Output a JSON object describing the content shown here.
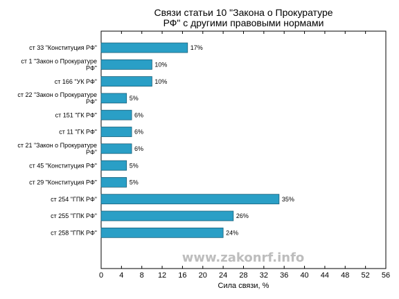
{
  "chart_data": {
    "type": "bar",
    "orientation": "horizontal",
    "title_lines": [
      "Связи статьи 10 \"Закона о Прокуратуре",
      "РФ\" с другими правовыми нормами"
    ],
    "xlabel": "Сила связи, %",
    "ylabel": "",
    "xlim": [
      0,
      56
    ],
    "xticks": [
      0,
      4,
      8,
      12,
      16,
      20,
      24,
      28,
      32,
      36,
      40,
      44,
      48,
      52,
      56
    ],
    "grid": false,
    "bar_color": "#2a9fc6",
    "bar_edge_color": "#1a5f78",
    "categories": [
      [
        "ст 33 \"Конституция РФ\""
      ],
      [
        "ст 1 \"Закон о Прокуратуре",
        "РФ\""
      ],
      [
        "ст 166 \"УК РФ\""
      ],
      [
        "ст 22 \"Закон о Прокуратуре",
        "РФ\""
      ],
      [
        "ст 151 \"ГК РФ\""
      ],
      [
        "ст 11 \"ГК РФ\""
      ],
      [
        "ст 21 \"Закон о Прокуратуре",
        "РФ\""
      ],
      [
        "ст 45 \"Конституция РФ\""
      ],
      [
        "ст 29 \"Конституция РФ\""
      ],
      [
        "ст 254 \"ГПК РФ\""
      ],
      [
        "ст 255 \"ГПК РФ\""
      ],
      [
        "ст 258 \"ГПК РФ\""
      ]
    ],
    "values": [
      17,
      10,
      10,
      5,
      6,
      6,
      6,
      5,
      5,
      35,
      26,
      24
    ],
    "value_labels": [
      "17%",
      "10%",
      "10%",
      "5%",
      "6%",
      "6%",
      "6%",
      "5%",
      "5%",
      "35%",
      "26%",
      "24%"
    ]
  },
  "watermark": "www.zakonrf.info"
}
